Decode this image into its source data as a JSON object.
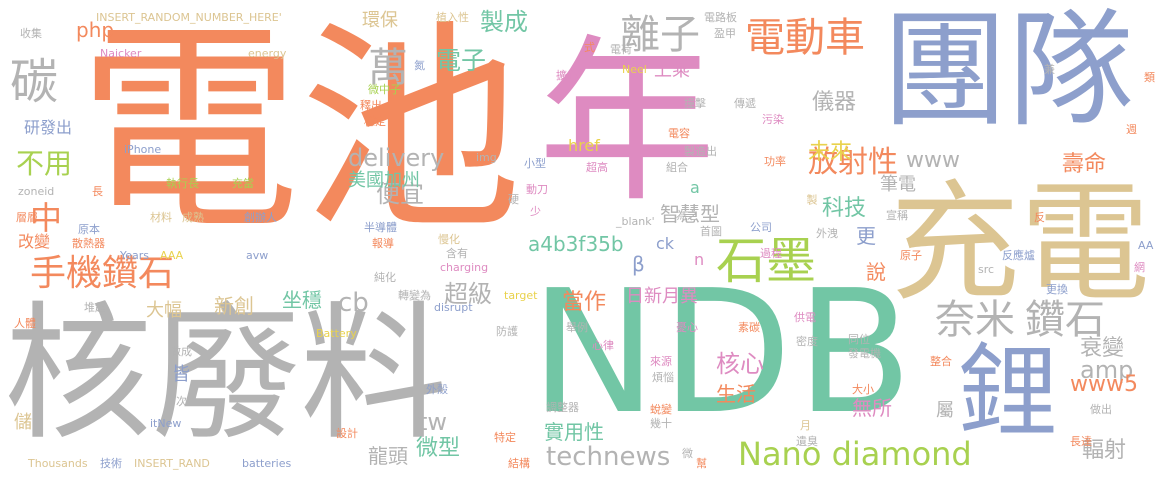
{
  "title": "Word cloud",
  "colors": {
    "orange": "#f3895d",
    "blue": "#8d9fcc",
    "pink": "#de8bc1",
    "tan": "#dcc592",
    "green": "#72c6a5",
    "gray": "#b3b3b3",
    "lime": "#a8d150",
    "yellow": "#e9d24c"
  },
  "words": [
    {
      "text": "電池",
      "color": "orange"
    },
    {
      "text": "年",
      "color": "pink"
    },
    {
      "text": "團隊",
      "color": "blue"
    },
    {
      "text": "充電",
      "color": "tan"
    },
    {
      "text": "核廢料",
      "color": "gray"
    },
    {
      "text": "NDB",
      "color": "green"
    },
    {
      "text": "鋰",
      "color": "blue"
    },
    {
      "text": "碳",
      "color": "gray"
    },
    {
      "text": "手機鑽石",
      "color": "orange"
    },
    {
      "text": "石墨",
      "color": "lime"
    },
    {
      "text": "奈米",
      "color": "gray"
    },
    {
      "text": "鑽石",
      "color": "gray"
    },
    {
      "text": "電動車",
      "color": "orange"
    },
    {
      "text": "離子",
      "color": "gray"
    },
    {
      "text": "萬",
      "color": "gray"
    },
    {
      "text": "Nano diamond",
      "color": "lime"
    },
    {
      "text": "放射性",
      "color": "orange"
    },
    {
      "text": "不用",
      "color": "lime"
    },
    {
      "text": "中",
      "color": "orange"
    },
    {
      "text": "delivery",
      "color": "gray"
    },
    {
      "text": "電子",
      "color": "green"
    },
    {
      "text": "technews",
      "color": "gray"
    },
    {
      "text": "製成",
      "color": "green"
    },
    {
      "text": "超級",
      "color": "gray"
    },
    {
      "text": "amp",
      "color": "gray"
    },
    {
      "text": "www5",
      "color": "orange"
    },
    {
      "text": "衰變",
      "color": "gray"
    },
    {
      "text": "輻射",
      "color": "gray"
    },
    {
      "text": "核心",
      "color": "pink"
    },
    {
      "text": "當作",
      "color": "orange"
    },
    {
      "text": "微型",
      "color": "green"
    },
    {
      "text": "www",
      "color": "gray"
    },
    {
      "text": "未來",
      "color": "yellow"
    },
    {
      "text": "壽命",
      "color": "orange"
    },
    {
      "text": "科技",
      "color": "green"
    },
    {
      "text": "智慧型",
      "color": "gray"
    },
    {
      "text": "便宜",
      "color": "gray"
    },
    {
      "text": "儀器",
      "color": "gray"
    },
    {
      "text": "tw",
      "color": "gray"
    },
    {
      "text": "cb",
      "color": "gray"
    },
    {
      "text": "a4b3f35b",
      "color": "green"
    },
    {
      "text": "坐穩",
      "color": "green"
    },
    {
      "text": "新創",
      "color": "tan"
    },
    {
      "text": "大幅",
      "color": "tan"
    },
    {
      "text": "生活",
      "color": "orange"
    },
    {
      "text": "無所",
      "color": "pink"
    },
    {
      "text": "實用性",
      "color": "green"
    },
    {
      "text": "龍頭",
      "color": "gray"
    },
    {
      "text": "日新月異",
      "color": "pink"
    },
    {
      "text": "美國加州",
      "color": "green"
    },
    {
      "text": "php",
      "color": "orange"
    },
    {
      "text": "環保",
      "color": "tan"
    },
    {
      "text": "研發出",
      "color": "blue"
    },
    {
      "text": "改變",
      "color": "orange"
    },
    {
      "text": "更",
      "color": "blue"
    },
    {
      "text": "說",
      "color": "orange"
    },
    {
      "text": "筆電",
      "color": "gray"
    },
    {
      "text": "上乘",
      "color": "pink"
    },
    {
      "text": "β",
      "color": "blue"
    },
    {
      "text": "皆",
      "color": "blue"
    },
    {
      "text": "儲",
      "color": "tan"
    },
    {
      "text": "href",
      "color": "yellow"
    },
    {
      "text": "ck",
      "color": "blue"
    },
    {
      "text": "屬",
      "color": "gray"
    },
    {
      "text": "a",
      "color": "green"
    },
    {
      "text": "n",
      "color": "pink"
    },
    {
      "text": "INSERT_RANDOM_NUMBER_HERE'",
      "color": "tan"
    },
    {
      "text": "INSERT_RAND",
      "color": "tan"
    },
    {
      "text": "Thousands",
      "color": "tan"
    },
    {
      "text": "batteries",
      "color": "blue"
    },
    {
      "text": "charging",
      "color": "pink"
    },
    {
      "text": "disrupt",
      "color": "blue"
    },
    {
      "text": "target",
      "color": "yellow"
    },
    {
      "text": "Battery",
      "color": "yellow"
    },
    {
      "text": "itNew",
      "color": "blue"
    },
    {
      "text": "iPhone",
      "color": "blue"
    },
    {
      "text": "zoneid",
      "color": "gray"
    },
    {
      "text": "Years",
      "color": "blue"
    },
    {
      "text": "AAA",
      "color": "yellow"
    },
    {
      "text": "avw",
      "color": "blue"
    },
    {
      "text": "energy",
      "color": "tan"
    },
    {
      "text": "Naicker",
      "color": "pink"
    },
    {
      "text": "Neel",
      "color": "yellow"
    },
    {
      "text": "src",
      "color": "gray"
    },
    {
      "text": "AA",
      "color": "blue"
    },
    {
      "text": "img",
      "color": "gray"
    },
    {
      "text": "_blank'",
      "color": "gray"
    },
    {
      "text": "收集",
      "color": "gray"
    },
    {
      "text": "植入性",
      "color": "tan"
    },
    {
      "text": "電路板",
      "color": "gray"
    },
    {
      "text": "盈甲",
      "color": "gray"
    },
    {
      "text": "電荷",
      "color": "gray"
    },
    {
      "text": "擴心",
      "color": "pink"
    },
    {
      "text": "微中子",
      "color": "lime"
    },
    {
      "text": "釋出",
      "color": "orange"
    },
    {
      "text": "穩定",
      "color": "orange"
    },
    {
      "text": "撞擊",
      "color": "gray"
    },
    {
      "text": "傳遞",
      "color": "gray"
    },
    {
      "text": "污染",
      "color": "pink"
    },
    {
      "text": "功率",
      "color": "orange"
    },
    {
      "text": "電容",
      "color": "orange"
    },
    {
      "text": "製造出",
      "color": "gray"
    },
    {
      "text": "組合",
      "color": "gray"
    },
    {
      "text": "超高",
      "color": "pink"
    },
    {
      "text": "小型",
      "color": "blue"
    },
    {
      "text": "動刀",
      "color": "pink"
    },
    {
      "text": "執行長",
      "color": "lime"
    },
    {
      "text": "充當",
      "color": "lime"
    },
    {
      "text": "材料",
      "color": "tan"
    },
    {
      "text": "成熟",
      "color": "tan"
    },
    {
      "text": "創辦人",
      "color": "blue"
    },
    {
      "text": "半導體",
      "color": "blue"
    },
    {
      "text": "報導",
      "color": "orange"
    },
    {
      "text": "含有",
      "color": "gray"
    },
    {
      "text": "硬",
      "color": "gray"
    },
    {
      "text": "少",
      "color": "pink"
    },
    {
      "text": "為之",
      "color": "gray"
    },
    {
      "text": "首圖",
      "color": "gray"
    },
    {
      "text": "公司",
      "color": "blue"
    },
    {
      "text": "外洩",
      "color": "gray"
    },
    {
      "text": "過程",
      "color": "pink"
    },
    {
      "text": "製",
      "color": "tan"
    },
    {
      "text": "宣稱",
      "color": "gray"
    },
    {
      "text": "反應爐",
      "color": "blue"
    },
    {
      "text": "原子",
      "color": "orange"
    },
    {
      "text": "更換",
      "color": "blue"
    },
    {
      "text": "散熱器",
      "color": "orange"
    },
    {
      "text": "原本",
      "color": "blue"
    },
    {
      "text": "慢化",
      "color": "tan"
    },
    {
      "text": "純化",
      "color": "gray"
    },
    {
      "text": "轉變為",
      "color": "gray"
    },
    {
      "text": "堆起",
      "color": "gray"
    },
    {
      "text": "人體",
      "color": "orange"
    },
    {
      "text": "做成",
      "color": "gray"
    },
    {
      "text": "次",
      "color": "gray"
    },
    {
      "text": "防護",
      "color": "gray"
    },
    {
      "text": "舉例",
      "color": "gray"
    },
    {
      "text": "心律",
      "color": "pink"
    },
    {
      "text": "來源",
      "color": "pink"
    },
    {
      "text": "煩惱",
      "color": "gray"
    },
    {
      "text": "調整器",
      "color": "gray"
    },
    {
      "text": "蛻變",
      "color": "orange"
    },
    {
      "text": "幾十",
      "color": "gray"
    },
    {
      "text": "特定",
      "color": "orange"
    },
    {
      "text": "結構",
      "color": "orange"
    },
    {
      "text": "設計",
      "color": "orange"
    },
    {
      "text": "技術",
      "color": "blue"
    },
    {
      "text": "素碳",
      "color": "orange"
    },
    {
      "text": "憂心",
      "color": "pink"
    },
    {
      "text": "同位",
      "color": "gray"
    },
    {
      "text": "發電機",
      "color": "gray"
    },
    {
      "text": "供電",
      "color": "pink"
    },
    {
      "text": "密度",
      "color": "gray"
    },
    {
      "text": "大小",
      "color": "orange"
    },
    {
      "text": "整合",
      "color": "orange"
    },
    {
      "text": "遺臭",
      "color": "gray"
    },
    {
      "text": "長達",
      "color": "orange"
    },
    {
      "text": "做出",
      "color": "gray"
    },
    {
      "text": "月",
      "color": "tan"
    },
    {
      "text": "微",
      "color": "gray"
    },
    {
      "text": "幫",
      "color": "orange"
    },
    {
      "text": "外殼",
      "color": "blue"
    },
    {
      "text": "式",
      "color": "orange"
    },
    {
      "text": "氮",
      "color": "blue"
    },
    {
      "text": "長",
      "color": "orange"
    },
    {
      "text": "層層",
      "color": "orange"
    },
    {
      "text": "兼",
      "color": "gray"
    },
    {
      "text": "類",
      "color": "orange"
    },
    {
      "text": "週",
      "color": "orange"
    },
    {
      "text": "反",
      "color": "orange"
    },
    {
      "text": "網",
      "color": "pink"
    }
  ]
}
